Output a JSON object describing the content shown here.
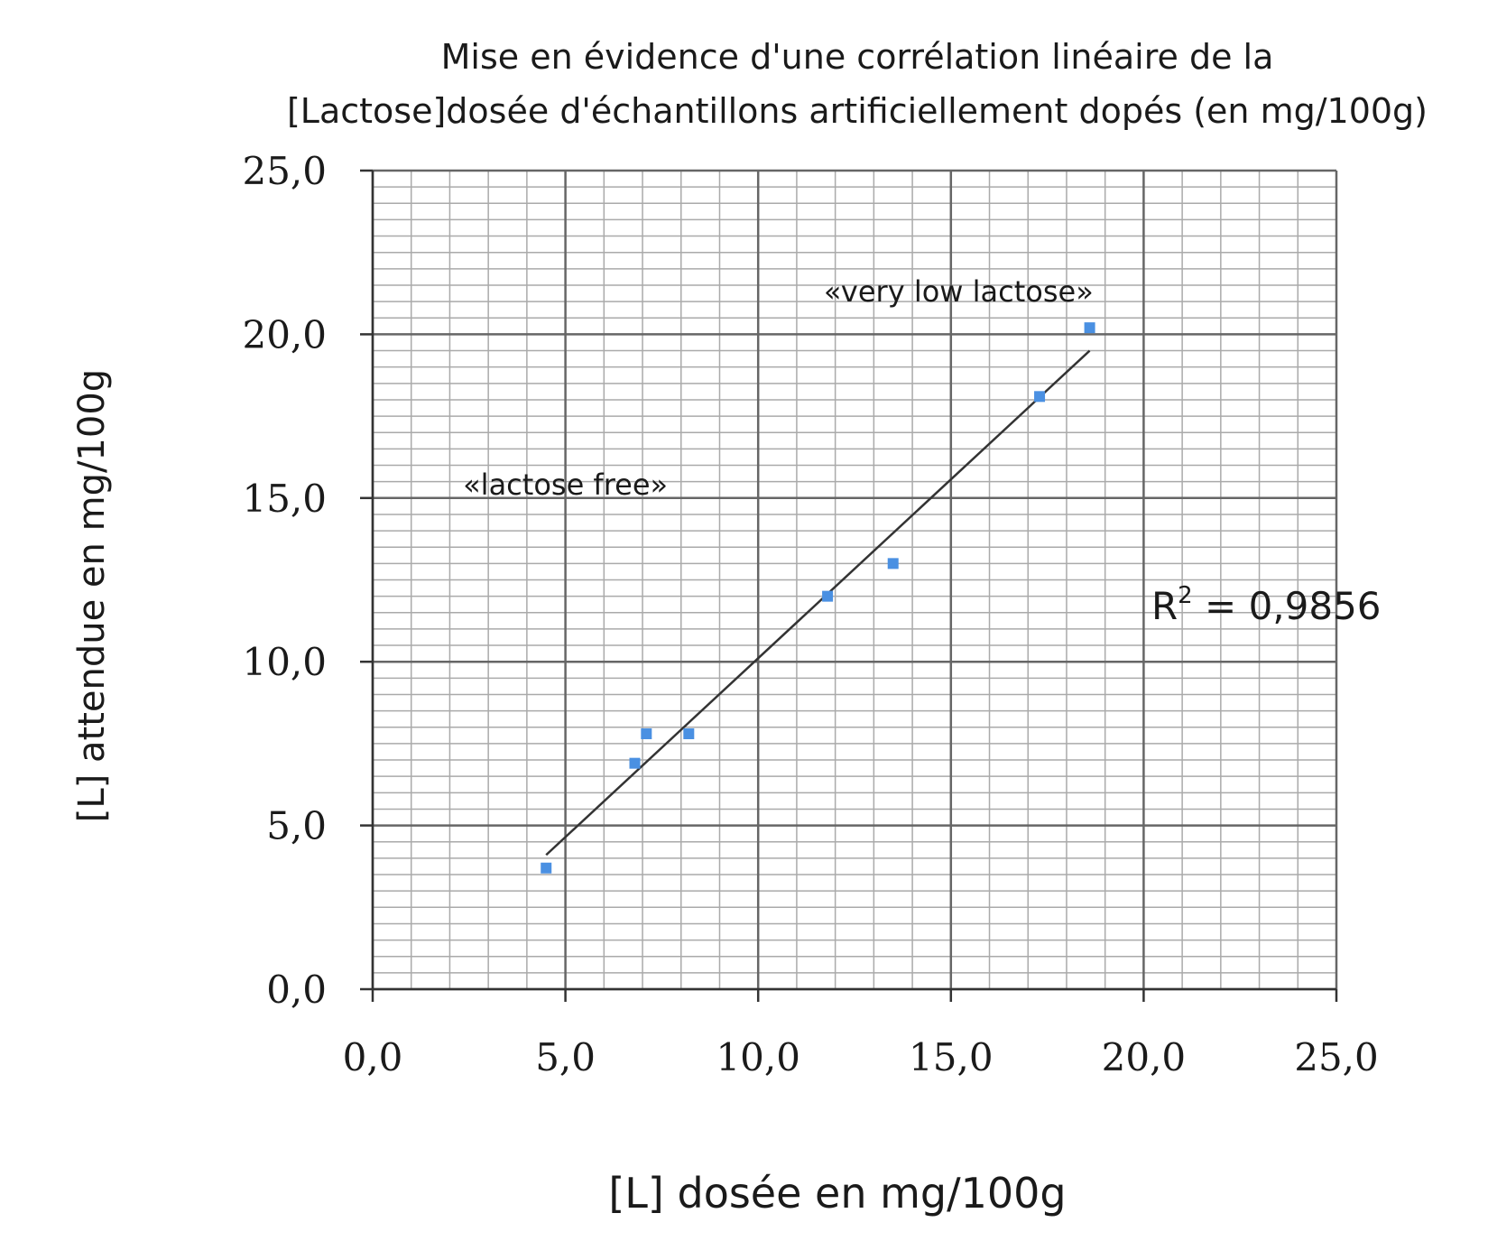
{
  "chart_data": {
    "type": "scatter",
    "title_lines": [
      "Mise en évidence d'une corrélation linéaire de la",
      "[Lactose]dosée d'échantillons artificiellement dopés  (en mg/100g)"
    ],
    "xlabel": "[L] dosée en mg/100g",
    "ylabel": "[L] attendue en mg/100g",
    "xlim": [
      0,
      25
    ],
    "ylim": [
      0,
      25
    ],
    "x_ticks": [
      "0,0",
      "5,0",
      "10,0",
      "15,0",
      "20,0",
      "25,0"
    ],
    "y_ticks": [
      "0,0",
      "5,0",
      "10,0",
      "15,0",
      "20,0",
      "25,0"
    ],
    "x_major_step": 5,
    "y_major_step": 5,
    "x_minor_step": 1,
    "y_minor_step": 1,
    "grid": true,
    "marker_color": "#4a90e2",
    "trendline_color": "#333333",
    "points": [
      {
        "x": 4.5,
        "y": 3.7
      },
      {
        "x": 6.8,
        "y": 6.9
      },
      {
        "x": 7.1,
        "y": 7.8
      },
      {
        "x": 8.2,
        "y": 7.8
      },
      {
        "x": 11.8,
        "y": 12.0
      },
      {
        "x": 13.5,
        "y": 13.0
      },
      {
        "x": 17.3,
        "y": 18.1
      },
      {
        "x": 18.6,
        "y": 20.2
      }
    ],
    "trendline": {
      "x_start": 4.5,
      "y_start": 4.1,
      "x_end": 18.6,
      "y_end": 19.5
    },
    "annotations": [
      {
        "text": "«very low lactose»",
        "x": 15.2,
        "y": 21.0
      },
      {
        "text": "«lactose free»",
        "x": 5.0,
        "y": 15.1
      }
    ],
    "r_squared": {
      "label": "R",
      "superscript": "2",
      "value": " = 0,9856",
      "x": 20.2,
      "y": 11.3
    }
  }
}
